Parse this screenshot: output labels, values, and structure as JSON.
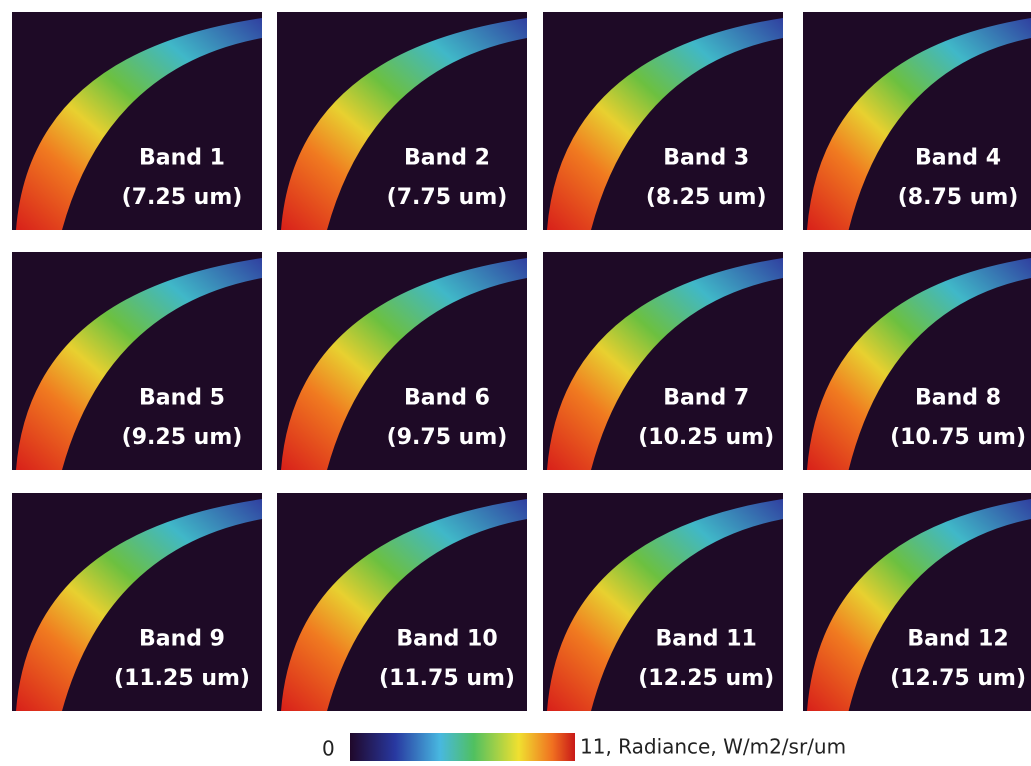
{
  "panels": [
    {
      "band": "Band 1",
      "wavelength": "(7.25 um)"
    },
    {
      "band": "Band 2",
      "wavelength": "(7.75 um)"
    },
    {
      "band": "Band 3",
      "wavelength": "(8.25 um)"
    },
    {
      "band": "Band 4",
      "wavelength": "(8.75 um)"
    },
    {
      "band": "Band 5",
      "wavelength": "(9.25 um)"
    },
    {
      "band": "Band 6",
      "wavelength": "(9.75 um)"
    },
    {
      "band": "Band 7",
      "wavelength": "(10.25 um)"
    },
    {
      "band": "Band 8",
      "wavelength": "(10.75 um)"
    },
    {
      "band": "Band 9",
      "wavelength": "(11.25 um)"
    },
    {
      "band": "Band 10",
      "wavelength": "(11.75 um)"
    },
    {
      "band": "Band 11",
      "wavelength": "(12.25 um)"
    },
    {
      "band": "Band 12",
      "wavelength": "(12.75 um)"
    }
  ],
  "colorbar": {
    "min_label": "0",
    "max_label": "11, Radiance, W/m2/sr/um"
  }
}
